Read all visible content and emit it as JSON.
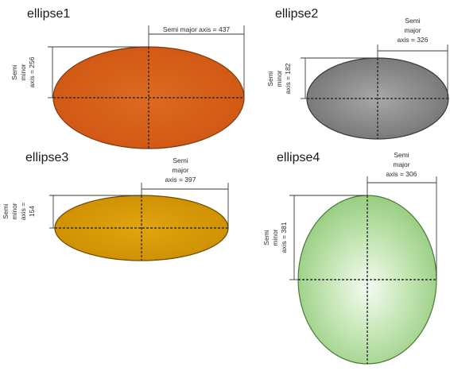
{
  "ellipses": [
    {
      "title": "ellipse1",
      "major": {
        "l1": "Semi major axis = 437"
      },
      "minor": {
        "l1": "Semi",
        "l2": "minor",
        "l3": "axis = 256"
      },
      "fill": "#d9621a"
    },
    {
      "title": "ellipse2",
      "major": {
        "l1": "Semi",
        "l2": "major",
        "l3": "axis = 326"
      },
      "minor": {
        "l1": "Semi",
        "l2": "minor",
        "l3": "axis = 182"
      },
      "fill": "#7e7e7e"
    },
    {
      "title": "ellipse3",
      "major": {
        "l1": "Semi",
        "l2": "major",
        "l3": "axis = 397"
      },
      "minor": {
        "l1": "Semi",
        "l2": "minor",
        "l3": "axis =",
        "l4": "154"
      },
      "fill": "#d99a00"
    },
    {
      "title": "ellipse4",
      "major": {
        "l1": "Semi",
        "l2": "major",
        "l3": "axis = 306"
      },
      "minor": {
        "l1": "Semi",
        "l2": "minor",
        "l3": "axis = 381"
      },
      "fill": "#9fd28a"
    }
  ]
}
